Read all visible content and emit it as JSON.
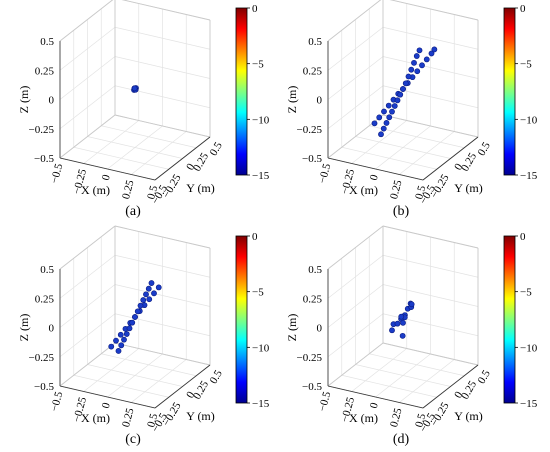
{
  "figure": {
    "colorbar": {
      "ticks": [
        "0",
        "−5",
        "−10",
        "−15"
      ],
      "range": [
        -15,
        0
      ],
      "colormap": [
        "#00008f",
        "#0000ff",
        "#0080ff",
        "#00ffff",
        "#80ff80",
        "#ffff00",
        "#ff8000",
        "#ff0000",
        "#800000"
      ]
    }
  },
  "chart_data": [
    {
      "type": "scatter",
      "panel": "(a)",
      "xlabel": "X (m)",
      "ylabel": "Y (m)",
      "zlabel": "Z (m)",
      "xticks": [
        "−0.5",
        "−0.25",
        "0",
        "0.25",
        "0.5"
      ],
      "yticks": [
        "0.5",
        "0.25",
        "0",
        "−0.25",
        "−0.5"
      ],
      "zticks": [
        "0.5",
        "0.25",
        "0",
        "−0.25",
        "−0.5"
      ],
      "xlim": [
        -0.5,
        0.5
      ],
      "ylim": [
        -0.5,
        0.5
      ],
      "zlim": [
        -0.5,
        0.5
      ],
      "grid": true,
      "series": [
        {
          "points": [
            [
              0.0,
              0.0,
              0.0
            ],
            [
              0.01,
              0.0,
              0.01
            ],
            [
              -0.01,
              0.0,
              -0.01
            ],
            [
              0.0,
              0.01,
              0.01
            ],
            [
              0.0,
              -0.01,
              -0.01
            ],
            [
              0.01,
              0.01,
              0.0
            ],
            [
              -0.01,
              -0.01,
              0.0
            ]
          ]
        }
      ]
    },
    {
      "type": "scatter",
      "panel": "(b)",
      "xlabel": "X (m)",
      "ylabel": "Y (m)",
      "zlabel": "Z (m)",
      "xticks": [
        "−0.5",
        "−0.25",
        "0",
        "0.25",
        "0.5"
      ],
      "yticks": [
        "0.5",
        "0.25",
        "0",
        "−0.25",
        "−0.5"
      ],
      "zticks": [
        "0.5",
        "0.25",
        "0",
        "−0.25",
        "−0.5"
      ],
      "xlim": [
        -0.5,
        0.5
      ],
      "ylim": [
        -0.5,
        0.5
      ],
      "zlim": [
        -0.5,
        0.5
      ],
      "grid": true,
      "series": [
        {
          "points": [
            [
              -0.3,
              0.0,
              -0.35
            ],
            [
              -0.25,
              0.0,
              -0.29
            ],
            [
              -0.2,
              0.0,
              -0.23
            ],
            [
              -0.15,
              0.0,
              -0.17
            ],
            [
              -0.1,
              0.0,
              -0.11
            ],
            [
              -0.05,
              0.0,
              -0.05
            ],
            [
              0.0,
              0.0,
              0.0
            ],
            [
              0.05,
              0.0,
              0.06
            ],
            [
              0.1,
              0.0,
              0.12
            ],
            [
              0.15,
              0.0,
              0.18
            ],
            [
              0.2,
              0.0,
              0.24
            ],
            [
              0.25,
              0.0,
              0.3
            ],
            [
              0.3,
              0.0,
              0.36
            ],
            [
              0.33,
              0.0,
              0.4
            ]
          ]
        },
        {
          "points": [
            [
              0.0,
              -0.3,
              0.22
            ],
            [
              0.0,
              -0.25,
              0.19
            ],
            [
              0.0,
              -0.2,
              0.15
            ],
            [
              0.0,
              -0.15,
              0.11
            ],
            [
              0.0,
              -0.1,
              0.07
            ],
            [
              0.0,
              -0.05,
              0.03
            ],
            [
              0.0,
              0.0,
              0.0
            ],
            [
              0.0,
              0.05,
              -0.03
            ],
            [
              0.0,
              0.1,
              -0.06
            ],
            [
              0.0,
              0.15,
              -0.09
            ],
            [
              0.0,
              0.2,
              -0.12
            ],
            [
              0.0,
              0.25,
              -0.15
            ],
            [
              0.0,
              0.3,
              -0.18
            ],
            [
              0.0,
              0.35,
              -0.21
            ],
            [
              0.0,
              0.4,
              -0.24
            ]
          ]
        }
      ]
    },
    {
      "type": "scatter",
      "panel": "(c)",
      "xlabel": "X (m)",
      "ylabel": "Y (m)",
      "zlabel": "Z (m)",
      "xticks": [
        "−0.5",
        "−0.25",
        "0",
        "0.25",
        "0.5"
      ],
      "yticks": [
        "0.5",
        "0.25",
        "0",
        "−0.25",
        "−0.5"
      ],
      "zticks": [
        "0.5",
        "0.25",
        "0",
        "−0.25",
        "−0.5"
      ],
      "xlim": [
        -0.5,
        0.5
      ],
      "ylim": [
        -0.5,
        0.5
      ],
      "zlim": [
        -0.5,
        0.5
      ],
      "grid": true,
      "series": [
        {
          "points": [
            [
              -0.25,
              0.0,
              -0.3
            ],
            [
              -0.2,
              0.0,
              -0.24
            ],
            [
              -0.15,
              0.0,
              -0.18
            ],
            [
              -0.1,
              0.0,
              -0.12
            ],
            [
              -0.05,
              0.0,
              -0.06
            ],
            [
              0.0,
              0.0,
              0.0
            ],
            [
              0.05,
              0.0,
              0.06
            ],
            [
              0.1,
              0.0,
              0.12
            ],
            [
              0.15,
              0.0,
              0.18
            ],
            [
              0.2,
              0.0,
              0.24
            ],
            [
              0.25,
              0.0,
              0.3
            ]
          ]
        },
        {
          "points": [
            [
              0.0,
              -0.3,
              0.18
            ],
            [
              0.0,
              -0.25,
              0.15
            ],
            [
              0.0,
              -0.2,
              0.12
            ],
            [
              0.0,
              -0.15,
              0.09
            ],
            [
              0.0,
              -0.1,
              0.06
            ],
            [
              0.0,
              -0.05,
              0.03
            ],
            [
              0.0,
              0.0,
              0.0
            ],
            [
              0.0,
              0.05,
              -0.03
            ],
            [
              0.0,
              0.1,
              -0.06
            ],
            [
              0.0,
              0.15,
              -0.09
            ],
            [
              0.0,
              0.2,
              -0.12
            ],
            [
              0.0,
              0.25,
              -0.15
            ],
            [
              0.0,
              0.3,
              -0.18
            ]
          ]
        }
      ]
    },
    {
      "type": "scatter",
      "panel": "(d)",
      "xlabel": "X (m)",
      "ylabel": "Y (m)",
      "zlabel": "Z (m)",
      "xticks": [
        "−0.5",
        "−0.25",
        "0",
        "0.25",
        "0.5"
      ],
      "yticks": [
        "0.5",
        "0.25",
        "0",
        "−0.25",
        "−0.5"
      ],
      "zticks": [
        "0.5",
        "0.25",
        "0",
        "−0.25",
        "−0.5"
      ],
      "xlim": [
        -0.5,
        0.5
      ],
      "ylim": [
        -0.5,
        0.5
      ],
      "zlim": [
        -0.5,
        0.5
      ],
      "grid": true,
      "series": [
        {
          "points": [
            [
              0.0,
              0.0,
              0.0
            ],
            [
              0.02,
              0.0,
              0.02
            ],
            [
              -0.02,
              0.0,
              -0.02
            ],
            [
              0.05,
              0.0,
              0.08
            ],
            [
              0.08,
              0.0,
              0.13
            ],
            [
              -0.1,
              0.0,
              -0.08
            ],
            [
              0.0,
              0.1,
              -0.02
            ],
            [
              0.0,
              -0.15,
              0.03
            ],
            [
              0.0,
              0.2,
              -0.04
            ],
            [
              0.12,
              0.05,
              0.15
            ],
            [
              -0.05,
              -0.08,
              -0.2
            ],
            [
              0.0,
              0.0,
              -0.05
            ],
            [
              0.03,
              0.02,
              0.01
            ],
            [
              -0.03,
              -0.02,
              -0.01
            ]
          ]
        }
      ]
    }
  ]
}
